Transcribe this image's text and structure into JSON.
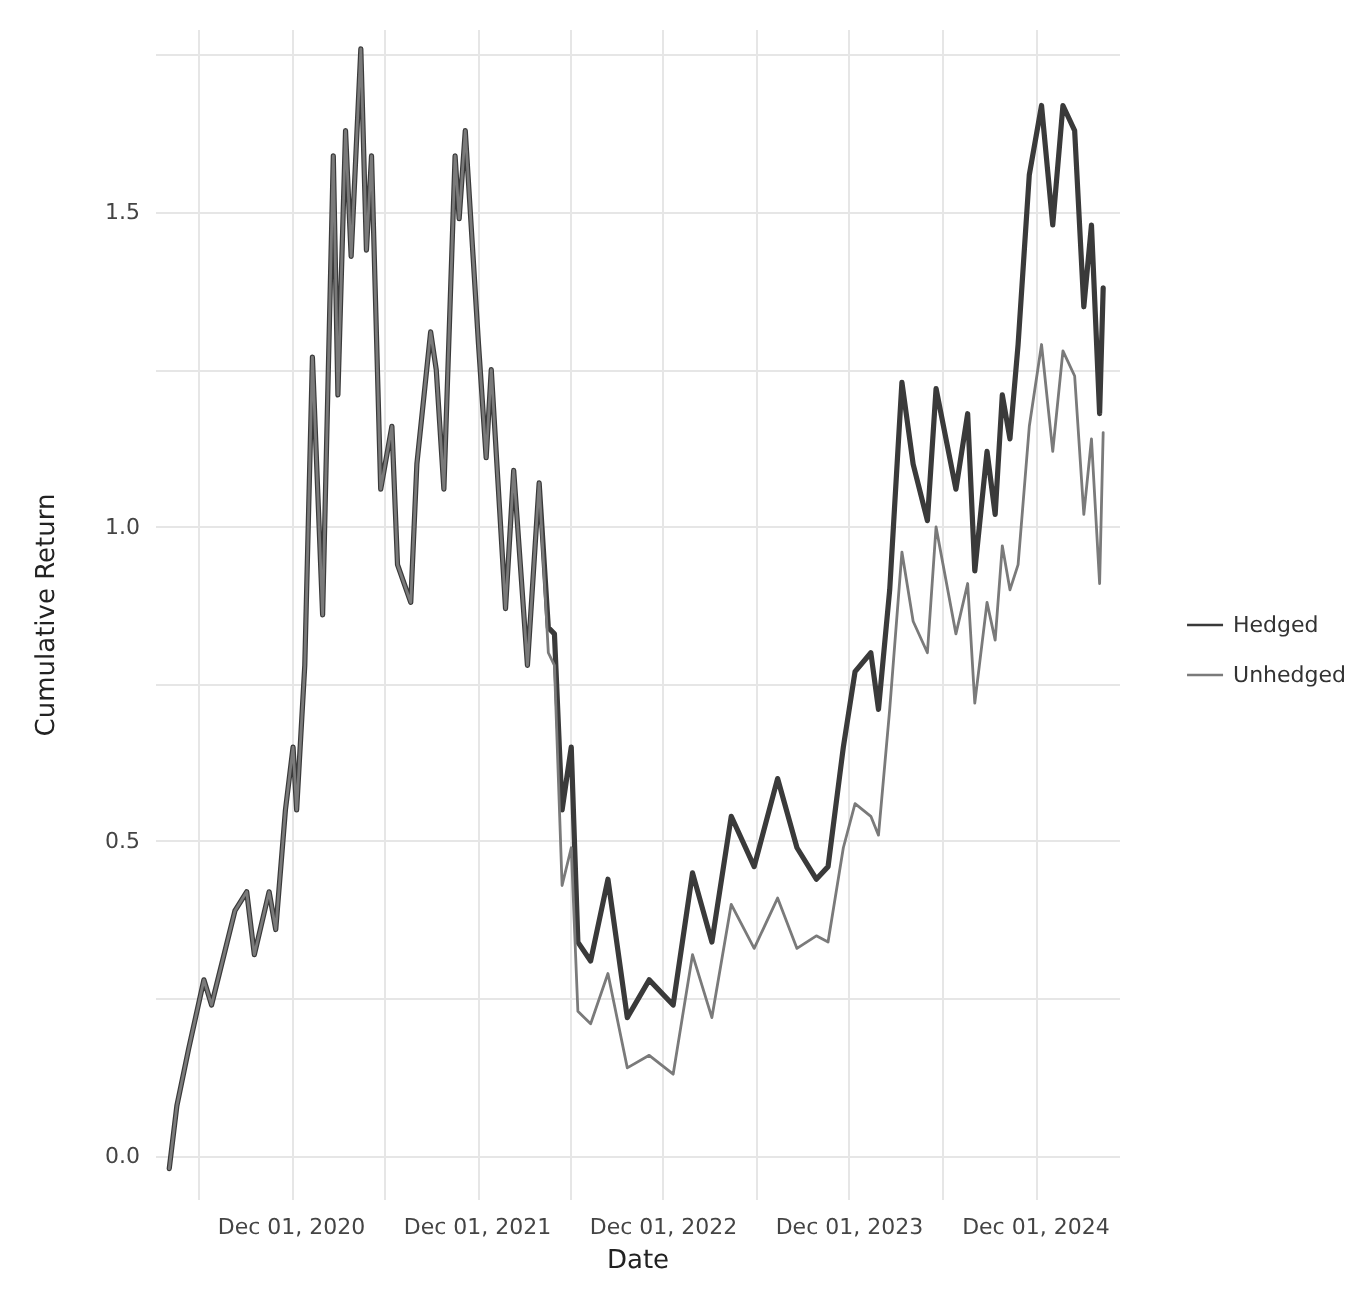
{
  "chart_data": {
    "type": "line",
    "xlabel": "Date",
    "ylabel": "Cumulative Return",
    "x": [
      "2020-04-05",
      "2020-04-20",
      "2020-05-13",
      "2020-06-12",
      "2020-06-27",
      "2020-08-12",
      "2020-09-04",
      "2020-09-19",
      "2020-10-18",
      "2020-10-31",
      "2020-11-19",
      "2020-12-04",
      "2020-12-11",
      "2020-12-27",
      "2021-01-11",
      "2021-01-31",
      "2021-02-21",
      "2021-03-02",
      "2021-03-17",
      "2021-03-28",
      "2021-04-16",
      "2021-04-27",
      "2021-05-07",
      "2021-05-25",
      "2021-06-16",
      "2021-06-27",
      "2021-07-23",
      "2021-08-04",
      "2021-08-31",
      "2021-09-11",
      "2021-09-26",
      "2021-10-18",
      "2021-10-26",
      "2021-11-07",
      "2021-12-03",
      "2021-12-18",
      "2021-12-28",
      "2022-01-25",
      "2022-02-10",
      "2022-03-09",
      "2022-04-01",
      "2022-04-19",
      "2022-05-01",
      "2022-05-16",
      "2022-06-03",
      "2022-06-16",
      "2022-07-11",
      "2022-08-14",
      "2022-09-21",
      "2022-11-03",
      "2022-12-20",
      "2023-01-27",
      "2023-03-06",
      "2023-04-13",
      "2023-05-28",
      "2023-07-13",
      "2023-08-20",
      "2023-09-27",
      "2023-10-20",
      "2023-11-19",
      "2023-12-12",
      "2024-01-12",
      "2024-01-27",
      "2024-02-18",
      "2024-03-13",
      "2024-04-04",
      "2024-05-02",
      "2024-05-19",
      "2024-06-27",
      "2024-07-20",
      "2024-08-03",
      "2024-08-27",
      "2024-09-12",
      "2024-09-26",
      "2024-10-11",
      "2024-10-27",
      "2024-11-18",
      "2024-12-12",
      "2025-01-03",
      "2025-01-23",
      "2025-02-15",
      "2025-03-05",
      "2025-03-20",
      "2025-04-05",
      "2025-04-12"
    ],
    "series": [
      {
        "name": "Hedged",
        "color": "#3a3a3a",
        "values": [
          -0.02,
          0.08,
          0.17,
          0.28,
          0.24,
          0.39,
          0.42,
          0.32,
          0.42,
          0.36,
          0.55,
          0.65,
          0.55,
          0.78,
          1.27,
          0.86,
          1.59,
          1.21,
          1.63,
          1.43,
          1.76,
          1.44,
          1.59,
          1.06,
          1.16,
          0.94,
          0.88,
          1.1,
          1.31,
          1.25,
          1.06,
          1.59,
          1.49,
          1.63,
          1.29,
          1.11,
          1.25,
          0.87,
          1.09,
          0.78,
          1.07,
          0.84,
          0.83,
          0.55,
          0.65,
          0.34,
          0.31,
          0.44,
          0.22,
          0.28,
          0.24,
          0.45,
          0.34,
          0.54,
          0.46,
          0.6,
          0.49,
          0.44,
          0.46,
          0.65,
          0.77,
          0.8,
          0.71,
          0.9,
          1.23,
          1.1,
          1.01,
          1.22,
          1.06,
          1.18,
          0.93,
          1.12,
          1.02,
          1.21,
          1.14,
          1.29,
          1.56,
          1.67,
          1.48,
          1.67,
          1.63,
          1.35,
          1.48,
          1.18,
          1.38
        ]
      },
      {
        "name": "Unhedged",
        "color": "#7a7a7a",
        "values": [
          -0.02,
          0.08,
          0.17,
          0.28,
          0.24,
          0.39,
          0.42,
          0.32,
          0.42,
          0.36,
          0.55,
          0.65,
          0.55,
          0.78,
          1.27,
          0.86,
          1.59,
          1.21,
          1.63,
          1.43,
          1.76,
          1.44,
          1.59,
          1.06,
          1.16,
          0.94,
          0.88,
          1.1,
          1.31,
          1.25,
          1.06,
          1.59,
          1.49,
          1.63,
          1.29,
          1.11,
          1.25,
          0.87,
          1.09,
          0.78,
          1.07,
          0.8,
          0.78,
          0.43,
          0.49,
          0.23,
          0.21,
          0.29,
          0.14,
          0.16,
          0.13,
          0.32,
          0.22,
          0.4,
          0.33,
          0.41,
          0.33,
          0.35,
          0.34,
          0.49,
          0.56,
          0.54,
          0.51,
          0.71,
          0.96,
          0.85,
          0.8,
          1.0,
          0.83,
          0.91,
          0.72,
          0.88,
          0.82,
          0.97,
          0.9,
          0.94,
          1.16,
          1.29,
          1.12,
          1.28,
          1.24,
          1.02,
          1.14,
          0.91,
          1.15
        ]
      }
    ],
    "xlim": [
      "2020-03-10",
      "2025-05-15"
    ],
    "xticks": [
      {
        "value": "2020-06-01",
        "label": null
      },
      {
        "value": "2020-12-01",
        "label": "Dec 01, 2020"
      },
      {
        "value": "2021-06-01",
        "label": null
      },
      {
        "value": "2021-12-01",
        "label": "Dec 01, 2021"
      },
      {
        "value": "2022-06-01",
        "label": null
      },
      {
        "value": "2022-12-01",
        "label": "Dec 01, 2022"
      },
      {
        "value": "2023-06-01",
        "label": null
      },
      {
        "value": "2023-12-01",
        "label": "Dec 01, 2023"
      },
      {
        "value": "2024-06-01",
        "label": null
      },
      {
        "value": "2024-12-01",
        "label": "Dec 01, 2024"
      }
    ],
    "ylim": [
      -0.07,
      1.79
    ],
    "yticks": [
      {
        "value": 0,
        "label": "0.0"
      },
      {
        "value": 0.25,
        "label": null
      },
      {
        "value": 0.5,
        "label": "0.5"
      },
      {
        "value": 0.75,
        "label": null
      },
      {
        "value": 1,
        "label": "1.0"
      },
      {
        "value": 1.25,
        "label": null
      },
      {
        "value": 1.5,
        "label": "1.5"
      },
      {
        "value": 1.75,
        "label": null
      }
    ],
    "grid": true,
    "legend": "right",
    "marker": "none",
    "line_style": "solid"
  }
}
